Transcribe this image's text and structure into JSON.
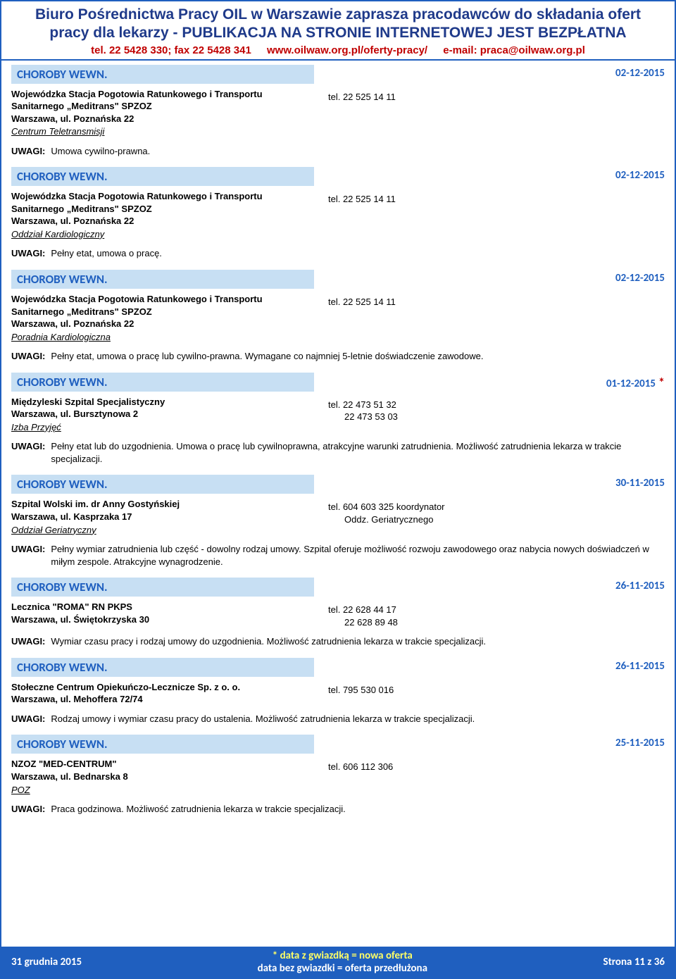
{
  "header": {
    "title_line1": "Biuro Pośrednictwa Pracy OIL w Warszawie zaprasza pracodawców do składania ofert",
    "title_line2": "pracy dla lekarzy - PUBLIKACJA NA STRONIE INTERNETOWEJ JEST BEZPŁATNA",
    "tel": "tel. 22 5428 330; fax 22 5428 341",
    "url": "www.oilwaw.org.pl/oferty-pracy/",
    "email": "e-mail: praca@oilwaw.org.pl"
  },
  "labels": {
    "uwagi": "UWAGI:"
  },
  "listings": [
    {
      "category": "CHOROBY WEWN.",
      "date": "02-12-2015",
      "starred": false,
      "org": "Wojewódzka Stacja Pogotowia Ratunkowego i Transportu Sanitarnego „Meditrans\" SPZOZ",
      "addr": "Warszawa, ul. Poznańska 22",
      "unit": "Centrum Teletransmisji",
      "contact": "tel. 22 525 14 11",
      "uwagi": "Umowa cywilno-prawna."
    },
    {
      "category": "CHOROBY WEWN.",
      "date": "02-12-2015",
      "starred": false,
      "org": "Wojewódzka Stacja Pogotowia Ratunkowego i Transportu Sanitarnego „Meditrans\" SPZOZ",
      "addr": "Warszawa, ul. Poznańska 22",
      "unit": "Oddział Kardiologiczny",
      "contact": "tel. 22 525 14 11",
      "uwagi": "Pełny etat, umowa o pracę."
    },
    {
      "category": "CHOROBY WEWN.",
      "date": "02-12-2015",
      "starred": false,
      "org": "Wojewódzka Stacja Pogotowia Ratunkowego i Transportu Sanitarnego „Meditrans\" SPZOZ",
      "addr": "Warszawa, ul. Poznańska 22",
      "unit": "Poradnia Kardiologiczna",
      "contact": "tel. 22 525 14 11",
      "uwagi": "Pełny etat, umowa o pracę lub cywilno-prawna. Wymagane co najmniej 5-letnie doświadczenie zawodowe."
    },
    {
      "category": "CHOROBY WEWN.",
      "date": "01-12-2015",
      "starred": true,
      "org": "Międzyleski Szpital Specjalistyczny",
      "addr": "Warszawa, ul. Bursztynowa 2",
      "unit": "Izba Przyjęć",
      "contact": "tel. 22 473 51 32\n22 473 53 03",
      "uwagi": "Pełny etat lub do uzgodnienia. Umowa o pracę lub cywilnoprawna, atrakcyjne warunki zatrudnienia. Możliwość zatrudnienia lekarza w trakcie specjalizacji."
    },
    {
      "category": "CHOROBY WEWN.",
      "date": "30-11-2015",
      "starred": false,
      "org": "Szpital Wolski im. dr Anny Gostyńskiej",
      "addr": "Warszawa, ul. Kasprzaka 17",
      "unit": "Oddział Geriatryczny",
      "contact": "tel. 604 603 325 koordynator\nOddz. Geriatrycznego",
      "uwagi": "Pełny wymiar zatrudnienia lub część - dowolny rodzaj umowy. Szpital oferuje możliwość rozwoju zawodowego oraz nabycia nowych doświadczeń w miłym zespole. Atrakcyjne wynagrodzenie."
    },
    {
      "category": "CHOROBY WEWN.",
      "date": "26-11-2015",
      "starred": false,
      "org": "Lecznica \"ROMA\" RN PKPS",
      "addr": "Warszawa, ul. Świętokrzyska 30",
      "unit": "",
      "contact": "tel. 22 628 44 17\n22 628 89 48",
      "uwagi": "Wymiar czasu pracy i rodzaj umowy do uzgodnienia. Możliwość zatrudnienia lekarza w trakcie specjalizacji."
    },
    {
      "category": "CHOROBY WEWN.",
      "date": "26-11-2015",
      "starred": false,
      "org": "Stołeczne Centrum Opiekuńczo-Lecznicze Sp. z o. o.",
      "addr": "Warszawa, ul. Mehoffera 72/74",
      "unit": "",
      "contact": "tel. 795 530 016",
      "uwagi": "Rodzaj umowy i wymiar czasu pracy do ustalenia. Możliwość zatrudnienia lekarza w trakcie specjalizacji."
    },
    {
      "category": "CHOROBY WEWN.",
      "date": "25-11-2015",
      "starred": false,
      "org": "NZOZ \"MED-CENTRUM\"",
      "addr": "Warszawa, ul. Bednarska 8",
      "unit": "POZ",
      "contact": "tel. 606 112 306",
      "uwagi": "Praca godzinowa. Możliwość zatrudnienia lekarza w trakcie specjalizacji."
    }
  ],
  "footer": {
    "left": "31 grudnia 2015",
    "center1": "* data z gwiazdką = nowa oferta",
    "center2": "data bez gwiazdki = oferta przedłużona",
    "right": "Strona 11 z 36"
  },
  "colors": {
    "border": "#1f5fbf",
    "title": "#1f3a8a",
    "contact_red": "#c00000",
    "bar_bg": "#c7dff3",
    "bar_text": "#1f5fbf",
    "footer_bg": "#1f5fbf",
    "footer_yellow": "#ffff66"
  }
}
